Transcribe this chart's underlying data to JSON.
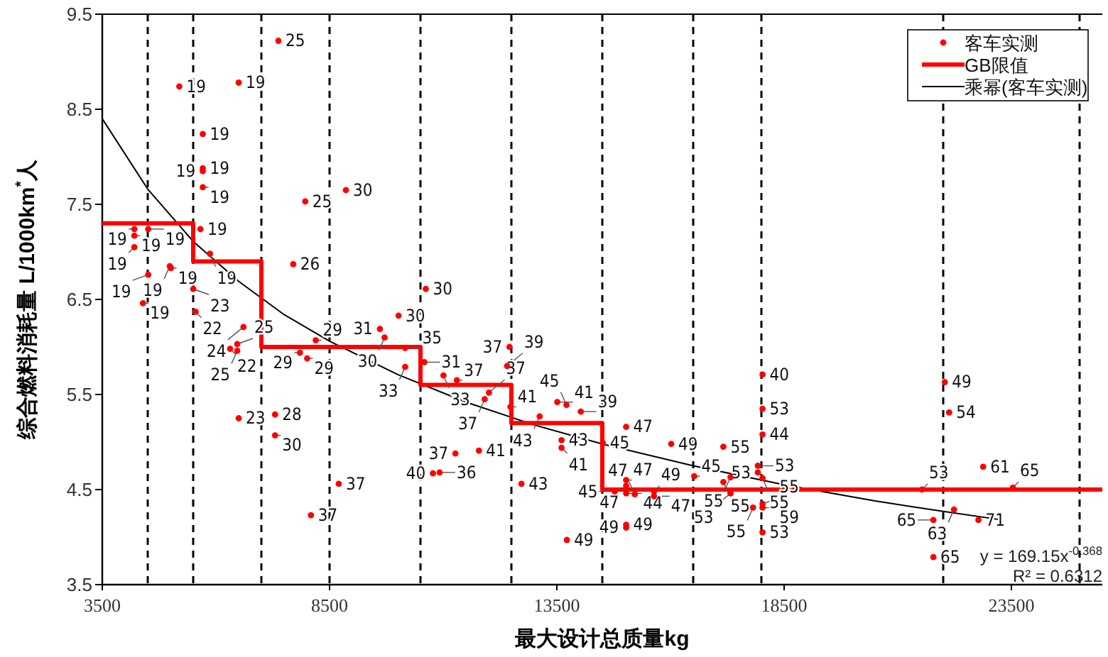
{
  "chart_data": {
    "type": "scatter",
    "xlabel": "最大设计总质量kg",
    "ylabel": "综合燃料消耗量 L/1000km$^{*}$人",
    "xlim": [
      3500,
      25500
    ],
    "ylim": [
      3.5,
      9.5
    ],
    "xticks": [
      3500,
      8500,
      13500,
      18500,
      23500
    ],
    "yticks": [
      3.5,
      4.5,
      5.5,
      6.5,
      7.5,
      8.5,
      9.5
    ],
    "grid": false,
    "legend": "top right",
    "ref_lines": [
      {
        "axis": "x",
        "value": 4500,
        "color": "#000000",
        "line_style": "dashed"
      },
      {
        "axis": "x",
        "value": 5500,
        "color": "#000000",
        "line_style": "dashed"
      },
      {
        "axis": "x",
        "value": 7000,
        "color": "#000000",
        "line_style": "dashed"
      },
      {
        "axis": "x",
        "value": 8500,
        "color": "#000000",
        "line_style": "dashed"
      },
      {
        "axis": "x",
        "value": 10500,
        "color": "#000000",
        "line_style": "dashed"
      },
      {
        "axis": "x",
        "value": 12500,
        "color": "#000000",
        "line_style": "dashed"
      },
      {
        "axis": "x",
        "value": 14500,
        "color": "#000000",
        "line_style": "dashed"
      },
      {
        "axis": "x",
        "value": 16500,
        "color": "#000000",
        "line_style": "dashed"
      },
      {
        "axis": "x",
        "value": 18000,
        "color": "#000000",
        "line_style": "dashed"
      },
      {
        "axis": "x",
        "value": 22000,
        "color": "#000000",
        "line_style": "dashed"
      },
      {
        "axis": "x",
        "value": 25000,
        "color": "#000000",
        "line_style": "dashed"
      }
    ],
    "series": [
      {
        "name": "客车实测",
        "color": "#ff0000",
        "marker": "circle",
        "x": [
          7375,
          5195,
          6501,
          5711,
          5711,
          5711,
          5711,
          7965,
          8860,
          4205,
          4205,
          4511,
          4205,
          5659,
          5869,
          4985,
          5010,
          4511,
          4395,
          5501,
          5553,
          7701,
          6606,
          6312,
          6469,
          6469,
          8196,
          7849,
          8007,
          6501,
          7301,
          7301,
          8702,
          8091,
          10617,
          10017,
          9607,
          9711,
          10163,
          10163,
          10585,
          11005,
          11300,
          12007,
          11912,
          12458,
          12405,
          12480,
          13122,
          13510,
          13711,
          14027,
          13604,
          13604,
          15025,
          16016,
          17163,
          14511,
          16522,
          11268,
          11786,
          10775,
          10921,
          12721,
          13721,
          15025,
          15025,
          14773,
          15025,
          15025,
          15025,
          15214,
          15637,
          15637,
          18025,
          18025,
          18025,
          18025,
          17921,
          17921,
          18025,
          17321,
          17163,
          17321,
          17816,
          18025,
          18025,
          21530,
          22035,
          22130,
          22878,
          23531,
          22237,
          21783,
          22774,
          21783
        ],
        "values": [
          9.22,
          8.74,
          8.78,
          8.24,
          7.88,
          7.85,
          7.68,
          7.53,
          7.65,
          7.24,
          7.17,
          7.24,
          7.05,
          7.24,
          6.98,
          6.85,
          6.83,
          6.76,
          6.46,
          6.61,
          6.37,
          6.87,
          6.21,
          5.98,
          6.03,
          5.96,
          6.07,
          5.94,
          5.88,
          5.25,
          5.29,
          5.07,
          4.56,
          4.23,
          6.61,
          6.33,
          6.19,
          6.1,
          5.99,
          5.79,
          5.84,
          5.7,
          5.65,
          5.52,
          5.45,
          6.0,
          5.8,
          5.37,
          5.27,
          5.42,
          5.39,
          5.32,
          5.02,
          4.94,
          5.16,
          4.98,
          4.95,
          4.99,
          4.64,
          4.88,
          4.91,
          4.67,
          4.68,
          4.56,
          3.97,
          4.13,
          4.1,
          4.48,
          4.6,
          4.54,
          4.46,
          4.45,
          4.48,
          4.43,
          5.71,
          5.35,
          5.08,
          4.05,
          4.75,
          4.68,
          4.62,
          4.63,
          4.58,
          4.46,
          4.31,
          4.35,
          4.31,
          4.5,
          5.63,
          5.31,
          4.74,
          4.52,
          4.29,
          4.18,
          4.18,
          3.79
        ]
      },
      {
        "name": "GB限值",
        "type": "step",
        "color": "#ff0000",
        "x": [
          3500,
          5500,
          7000,
          10500,
          12500,
          14500,
          25500
        ],
        "values": [
          7.3,
          6.9,
          6.0,
          5.6,
          5.2,
          4.5,
          4.5
        ]
      },
      {
        "name": "乘幂(客车实测)",
        "type": "line",
        "color": "#000000",
        "x": [
          3500,
          4500,
          5500,
          6500,
          7500,
          8500,
          10000,
          11500,
          13000,
          14500,
          16500,
          18500,
          20500,
          22000,
          23300
        ],
        "values": [
          8.4,
          7.66,
          7.11,
          6.69,
          6.34,
          6.06,
          5.71,
          5.42,
          5.18,
          4.98,
          4.75,
          4.55,
          4.38,
          4.27,
          4.18
        ]
      }
    ],
    "annotations": [
      "y = 169.15x$^{-0.368}$",
      "R² = 0.6312",
      {
        "text": "25",
        "x": 7375,
        "y": 9.22
      },
      {
        "text": "19",
        "x": 5195,
        "y": 8.74
      },
      {
        "text": "19",
        "x": 6501,
        "y": 8.78
      },
      {
        "text": "19",
        "x": 5711,
        "y": 8.24
      },
      {
        "text": "19",
        "x": 5711,
        "y": 7.88
      },
      {
        "text": "19",
        "x": 5711,
        "y": 7.85
      },
      {
        "text": "19",
        "x": 5711,
        "y": 7.68
      },
      {
        "text": "25",
        "x": 7965,
        "y": 7.53
      },
      {
        "text": "30",
        "x": 8860,
        "y": 7.65
      },
      {
        "text": "19",
        "x": 4205,
        "y": 7.24
      },
      {
        "text": "19",
        "x": 4205,
        "y": 7.17
      },
      {
        "text": "19",
        "x": 4511,
        "y": 7.24
      },
      {
        "text": "19",
        "x": 4205,
        "y": 7.05
      },
      {
        "text": "19",
        "x": 5659,
        "y": 7.24
      },
      {
        "text": "19",
        "x": 5869,
        "y": 6.98
      },
      {
        "text": "19",
        "x": 4985,
        "y": 6.85
      },
      {
        "text": "19",
        "x": 5010,
        "y": 6.83
      },
      {
        "text": "19",
        "x": 4511,
        "y": 6.76
      },
      {
        "text": "19",
        "x": 4395,
        "y": 6.46
      },
      {
        "text": "23",
        "x": 5501,
        "y": 6.61
      },
      {
        "text": "22",
        "x": 5553,
        "y": 6.37
      },
      {
        "text": "26",
        "x": 7701,
        "y": 6.87
      },
      {
        "text": "24",
        "x": 6606,
        "y": 6.21
      },
      {
        "text": "22",
        "x": 6312,
        "y": 5.98
      },
      {
        "text": "25",
        "x": 6469,
        "y": 6.03
      },
      {
        "text": "25",
        "x": 6469,
        "y": 5.96
      },
      {
        "text": "29",
        "x": 8196,
        "y": 6.07
      },
      {
        "text": "29",
        "x": 7849,
        "y": 5.94
      },
      {
        "text": "29",
        "x": 8007,
        "y": 5.88
      },
      {
        "text": "23",
        "x": 6501,
        "y": 5.25
      },
      {
        "text": "28",
        "x": 7301,
        "y": 5.29
      },
      {
        "text": "30",
        "x": 7301,
        "y": 5.07
      },
      {
        "text": "37",
        "x": 8702,
        "y": 4.56
      },
      {
        "text": "37",
        "x": 8091,
        "y": 4.23
      },
      {
        "text": "30",
        "x": 10617,
        "y": 6.61
      },
      {
        "text": "30",
        "x": 10017,
        "y": 6.33
      },
      {
        "text": "31",
        "x": 9607,
        "y": 6.19
      },
      {
        "text": "30",
        "x": 9711,
        "y": 6.1
      },
      {
        "text": "35",
        "x": 10163,
        "y": 5.99
      },
      {
        "text": "33",
        "x": 10163,
        "y": 5.79
      },
      {
        "text": "31",
        "x": 10585,
        "y": 5.84
      },
      {
        "text": "33",
        "x": 11005,
        "y": 5.7
      },
      {
        "text": "37",
        "x": 11300,
        "y": 5.65
      },
      {
        "text": "37",
        "x": 12007,
        "y": 5.52
      },
      {
        "text": "37",
        "x": 11912,
        "y": 5.45
      },
      {
        "text": "37",
        "x": 12458,
        "y": 6.0
      },
      {
        "text": "39",
        "x": 12405,
        "y": 5.8
      },
      {
        "text": "41",
        "x": 12480,
        "y": 5.37
      },
      {
        "text": "43",
        "x": 13122,
        "y": 5.27
      },
      {
        "text": "41",
        "x": 13510,
        "y": 5.42
      },
      {
        "text": "45",
        "x": 13711,
        "y": 5.39
      },
      {
        "text": "39",
        "x": 14027,
        "y": 5.32
      },
      {
        "text": "43",
        "x": 13604,
        "y": 5.02
      },
      {
        "text": "41",
        "x": 13604,
        "y": 4.94
      },
      {
        "text": "47",
        "x": 15025,
        "y": 5.16
      },
      {
        "text": "49",
        "x": 16016,
        "y": 4.98
      },
      {
        "text": "55",
        "x": 17163,
        "y": 4.95
      },
      {
        "text": "45",
        "x": 14511,
        "y": 4.99
      },
      {
        "text": "45",
        "x": 16522,
        "y": 4.64
      },
      {
        "text": "37",
        "x": 11268,
        "y": 4.88
      },
      {
        "text": "41",
        "x": 11786,
        "y": 4.91
      },
      {
        "text": "40",
        "x": 10775,
        "y": 4.67
      },
      {
        "text": "36",
        "x": 10921,
        "y": 4.68
      },
      {
        "text": "43",
        "x": 12721,
        "y": 4.56
      },
      {
        "text": "49",
        "x": 13721,
        "y": 3.97
      },
      {
        "text": "49",
        "x": 15025,
        "y": 4.13
      },
      {
        "text": "49",
        "x": 15025,
        "y": 4.1
      },
      {
        "text": "45",
        "x": 14773,
        "y": 4.48
      },
      {
        "text": "47",
        "x": 15025,
        "y": 4.6
      },
      {
        "text": "47",
        "x": 15025,
        "y": 4.54
      },
      {
        "text": "44",
        "x": 15025,
        "y": 4.46
      },
      {
        "text": "47",
        "x": 15214,
        "y": 4.45
      },
      {
        "text": "49",
        "x": 15637,
        "y": 4.48
      },
      {
        "text": "47",
        "x": 15637,
        "y": 4.43
      },
      {
        "text": "40",
        "x": 18025,
        "y": 5.71
      },
      {
        "text": "53",
        "x": 18025,
        "y": 5.35
      },
      {
        "text": "44",
        "x": 18025,
        "y": 5.08
      },
      {
        "text": "53",
        "x": 18025,
        "y": 4.05
      },
      {
        "text": "53",
        "x": 17921,
        "y": 4.75
      },
      {
        "text": "53",
        "x": 17921,
        "y": 4.68
      },
      {
        "text": "55",
        "x": 18025,
        "y": 4.62
      },
      {
        "text": "55",
        "x": 17321,
        "y": 4.63
      },
      {
        "text": "55",
        "x": 17163,
        "y": 4.58
      },
      {
        "text": "53",
        "x": 17321,
        "y": 4.46
      },
      {
        "text": "55",
        "x": 17816,
        "y": 4.31
      },
      {
        "text": "55",
        "x": 18025,
        "y": 4.35
      },
      {
        "text": "59",
        "x": 18025,
        "y": 4.31
      },
      {
        "text": "53",
        "x": 21530,
        "y": 4.5
      },
      {
        "text": "49",
        "x": 22035,
        "y": 5.63
      },
      {
        "text": "54",
        "x": 22130,
        "y": 5.31
      },
      {
        "text": "61",
        "x": 22878,
        "y": 4.74
      },
      {
        "text": "65",
        "x": 23531,
        "y": 4.52
      },
      {
        "text": "63",
        "x": 22237,
        "y": 4.29
      },
      {
        "text": "65",
        "x": 21783,
        "y": 4.18
      },
      {
        "text": "71",
        "x": 22774,
        "y": 4.18
      },
      {
        "text": "65",
        "x": 21783,
        "y": 3.79
      }
    ]
  }
}
